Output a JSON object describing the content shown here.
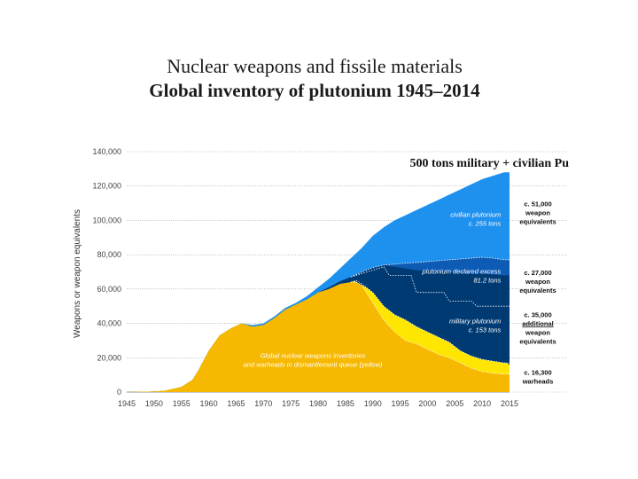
{
  "title": "Nuclear weapons and fissile materials",
  "subtitle": "Global inventory of plutonium 1945–2014",
  "chart_data": {
    "type": "area",
    "header": "500 tons military + civilian Pu",
    "ylabel": "Weapons or weapon equivalents",
    "xlabel": "",
    "xlim": [
      1945,
      2015
    ],
    "ylim": [
      0,
      140000
    ],
    "xticks": [
      "1945",
      "1950",
      "1955",
      "1960",
      "1965",
      "1970",
      "1975",
      "1980",
      "1985",
      "1990",
      "1995",
      "2000",
      "2005",
      "2010",
      "2015"
    ],
    "yticks": [
      "0",
      "20,000",
      "40,000",
      "60,000",
      "80,000",
      "100,000",
      "120,000",
      "140,000"
    ],
    "x": [
      1945,
      1950,
      1952,
      1955,
      1957,
      1958,
      1960,
      1962,
      1964,
      1966,
      1968,
      1970,
      1972,
      1974,
      1976,
      1978,
      1980,
      1982,
      1984,
      1986,
      1987,
      1988,
      1990,
      1992,
      1994,
      1996,
      1998,
      2000,
      2002,
      2004,
      2006,
      2008,
      2010,
      2012,
      2014,
      2015
    ],
    "series": [
      {
        "name": "yellow",
        "color": "#ffe600",
        "values": [
          0,
          300,
          800,
          3000,
          7000,
          12000,
          24000,
          33000,
          37000,
          40000,
          38000,
          39000,
          43000,
          48000,
          51000,
          54000,
          58000,
          60000,
          63000,
          64000,
          65000,
          63000,
          58000,
          50000,
          45000,
          42000,
          38000,
          35000,
          32000,
          29000,
          24000,
          21000,
          19000,
          18000,
          17000,
          17000
        ]
      },
      {
        "name": "orange",
        "color": "#f6b800",
        "values": [
          0,
          300,
          800,
          3000,
          7000,
          12000,
          24000,
          33000,
          37000,
          40000,
          38000,
          39000,
          43000,
          48000,
          51000,
          54000,
          58000,
          60000,
          63000,
          64000,
          64000,
          62000,
          52000,
          42000,
          35000,
          30000,
          28000,
          25000,
          22000,
          20000,
          17000,
          14000,
          12000,
          11000,
          10500,
          10500
        ]
      },
      {
        "name": "military plutonium",
        "color": "#003a73",
        "values": [
          0,
          300,
          800,
          3000,
          7000,
          12000,
          24000,
          33000,
          37000,
          40000,
          38000,
          39000,
          43000,
          48000,
          51000,
          54000,
          58000,
          61000,
          64500,
          67000,
          68500,
          70000,
          72500,
          74000,
          73000,
          72000,
          71000,
          71000,
          70500,
          70000,
          69500,
          69000,
          69000,
          68500,
          68000,
          68000
        ]
      },
      {
        "name": "plutonium declared excess",
        "color": "#0d5bb5",
        "values": [
          0,
          300,
          800,
          3000,
          7000,
          12000,
          24000,
          33000,
          37000,
          40000,
          38000,
          39000,
          43000,
          48000,
          51000,
          54000,
          58000,
          61000,
          64500,
          67000,
          68500,
          70000,
          72500,
          74000,
          74500,
          75000,
          75500,
          76000,
          76500,
          77000,
          77500,
          78000,
          78500,
          78000,
          77000,
          77000
        ]
      },
      {
        "name": "civilian plutonium",
        "color": "#1e90ee",
        "values": [
          0,
          300,
          800,
          3000,
          7000,
          12000,
          24000,
          33000,
          37000,
          40000,
          39000,
          40000,
          44000,
          49000,
          52000,
          56000,
          61000,
          66000,
          72000,
          78000,
          81000,
          84000,
          91000,
          96000,
          100000,
          103000,
          106000,
          109000,
          112000,
          115000,
          118000,
          121000,
          124000,
          126000,
          128000,
          128000
        ]
      }
    ],
    "dark_step_top": {
      "x": [
        1986,
        1990,
        1992,
        1993,
        1997,
        1998,
        2003,
        2004,
        2008,
        2009,
        2015
      ],
      "values": [
        67000,
        71000,
        73000,
        68000,
        68000,
        58000,
        58000,
        53000,
        53000,
        50000,
        50000
      ]
    },
    "area_labels": [
      {
        "lines": [
          "civilian plutonium",
          "c. 255 tons"
        ],
        "x": 2011,
        "y": 102000
      },
      {
        "lines": [
          "plutonium declared excess",
          "81.2 tons"
        ],
        "x": 2011,
        "y": 69000
      },
      {
        "lines": [
          "military plutonium",
          "c. 153 tons"
        ],
        "x": 2011,
        "y": 40000
      },
      {
        "lines": [
          "Global nuclear weapons inventories",
          "and warheads in dismantlement queue (yellow)"
        ],
        "x": 1978,
        "y": 20000
      }
    ],
    "side_labels": [
      {
        "lines": [
          "c. 51,000",
          "weapon",
          "equivalents"
        ],
        "y": 103000
      },
      {
        "lines": [
          "c. 27,000",
          "weapon",
          "equivalents"
        ],
        "y": 63000
      },
      {
        "lines": [
          "c. 35,000",
          "additional",
          "weapon",
          "equivalents"
        ],
        "y": 36000
      },
      {
        "lines": [
          "c. 16,300",
          "warheads"
        ],
        "y": 7500
      }
    ],
    "grid": "horizontal dotted"
  }
}
